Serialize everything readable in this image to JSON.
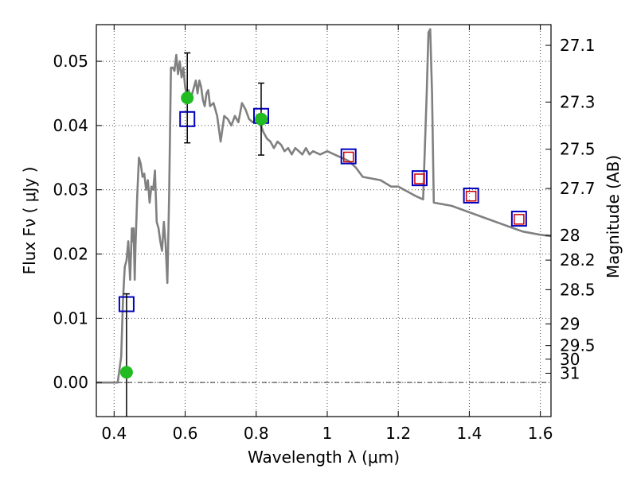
{
  "chart_data": {
    "type": "line",
    "xlabel": "Wavelength  λ (μm)",
    "ylabel": "Flux  Fν  ( μJy )",
    "ylabel_right": "Magnitude (AB)",
    "xlim": [
      0.35,
      1.63
    ],
    "ylim": [
      -0.0053,
      0.0557
    ],
    "x_ticks": [
      0.4,
      0.6,
      0.8,
      1.0,
      1.2,
      1.4,
      1.6
    ],
    "x_tick_labels": [
      "0.4",
      "0.6",
      "0.8",
      "1",
      "1.2",
      "1.4",
      "1.6"
    ],
    "y_ticks": [
      0.0,
      0.01,
      0.02,
      0.03,
      0.04,
      0.05
    ],
    "y_tick_labels": [
      "0.00",
      "0.01",
      "0.02",
      "0.03",
      "0.04",
      "0.05"
    ],
    "right_ticks": [
      {
        "label": "27.1",
        "mag": 27.1
      },
      {
        "label": "27.3",
        "mag": 27.3
      },
      {
        "label": "27.5",
        "mag": 27.5
      },
      {
        "label": "27.7",
        "mag": 27.7
      },
      {
        "label": "28",
        "mag": 28.0
      },
      {
        "label": "28.2",
        "mag": 28.2
      },
      {
        "label": "28.5",
        "mag": 28.5
      },
      {
        "label": "29",
        "mag": 29.0
      },
      {
        "label": "29.5",
        "mag": 29.5
      },
      {
        "label": "30",
        "mag": 30.0
      },
      {
        "label": "31",
        "mag": 31.0
      }
    ],
    "grid": true,
    "series": [
      {
        "kind": "model-sed",
        "color": "#808080",
        "x": [
          0.35,
          0.41,
          0.415,
          0.42,
          0.425,
          0.43,
          0.435,
          0.44,
          0.445,
          0.45,
          0.452,
          0.455,
          0.458,
          0.46,
          0.465,
          0.47,
          0.475,
          0.48,
          0.485,
          0.49,
          0.495,
          0.5,
          0.505,
          0.51,
          0.515,
          0.52,
          0.525,
          0.53,
          0.535,
          0.54,
          0.545,
          0.55,
          0.555,
          0.56,
          0.565,
          0.57,
          0.575,
          0.58,
          0.585,
          0.59,
          0.595,
          0.6,
          0.605,
          0.61,
          0.615,
          0.62,
          0.625,
          0.63,
          0.635,
          0.64,
          0.645,
          0.65,
          0.655,
          0.66,
          0.665,
          0.67,
          0.68,
          0.69,
          0.7,
          0.71,
          0.72,
          0.73,
          0.74,
          0.75,
          0.76,
          0.77,
          0.78,
          0.79,
          0.8,
          0.81,
          0.82,
          0.83,
          0.84,
          0.85,
          0.86,
          0.87,
          0.88,
          0.89,
          0.9,
          0.91,
          0.92,
          0.93,
          0.94,
          0.95,
          0.96,
          0.98,
          1.0,
          1.02,
          1.04,
          1.06,
          1.08,
          1.1,
          1.15,
          1.18,
          1.2,
          1.25,
          1.27,
          1.28,
          1.285,
          1.29,
          1.295,
          1.3,
          1.35,
          1.4,
          1.45,
          1.5,
          1.55,
          1.6,
          1.63
        ],
        "y": [
          0.0,
          0.0,
          0.002,
          0.004,
          0.013,
          0.018,
          0.019,
          0.022,
          0.016,
          0.024,
          0.022,
          0.024,
          0.016,
          0.021,
          0.029,
          0.035,
          0.034,
          0.032,
          0.0325,
          0.03,
          0.0315,
          0.028,
          0.0305,
          0.03,
          0.033,
          0.025,
          0.024,
          0.022,
          0.0205,
          0.025,
          0.0215,
          0.0155,
          0.029,
          0.049,
          0.049,
          0.0485,
          0.051,
          0.048,
          0.05,
          0.0475,
          0.049,
          0.046,
          0.0445,
          0.0455,
          0.044,
          0.045,
          0.046,
          0.047,
          0.045,
          0.047,
          0.046,
          0.044,
          0.043,
          0.045,
          0.0455,
          0.043,
          0.0435,
          0.0415,
          0.0375,
          0.0415,
          0.041,
          0.04,
          0.0415,
          0.0405,
          0.0435,
          0.0425,
          0.041,
          0.0405,
          0.041,
          0.0405,
          0.039,
          0.038,
          0.0375,
          0.0365,
          0.0375,
          0.037,
          0.036,
          0.0365,
          0.0355,
          0.0365,
          0.036,
          0.0355,
          0.0365,
          0.0355,
          0.036,
          0.0355,
          0.036,
          0.0355,
          0.035,
          0.0345,
          0.0335,
          0.032,
          0.0315,
          0.0305,
          0.0305,
          0.029,
          0.0285,
          0.045,
          0.0545,
          0.055,
          0.045,
          0.028,
          0.0275,
          0.0265,
          0.0255,
          0.0245,
          0.0235,
          0.023,
          0.0228
        ]
      },
      {
        "kind": "model-photometry",
        "color": "#0000c0",
        "x": [
          0.435,
          0.606,
          0.814,
          1.06,
          1.26,
          1.405,
          1.54
        ],
        "y": [
          0.0122,
          0.041,
          0.0415,
          0.0352,
          0.0318,
          0.0291,
          0.0255
        ]
      },
      {
        "kind": "observed-upper",
        "color": "#cc0000",
        "x": [
          1.06,
          1.26,
          1.405,
          1.54
        ],
        "y": [
          0.0351,
          0.0317,
          0.029,
          0.0254
        ]
      },
      {
        "kind": "observed-detection",
        "color": "#22bb22",
        "x": [
          0.435,
          0.606,
          0.814
        ],
        "y": [
          0.0016,
          0.0443,
          0.041
        ],
        "yerr": [
          0.0122,
          0.007,
          0.0056
        ]
      }
    ]
  }
}
